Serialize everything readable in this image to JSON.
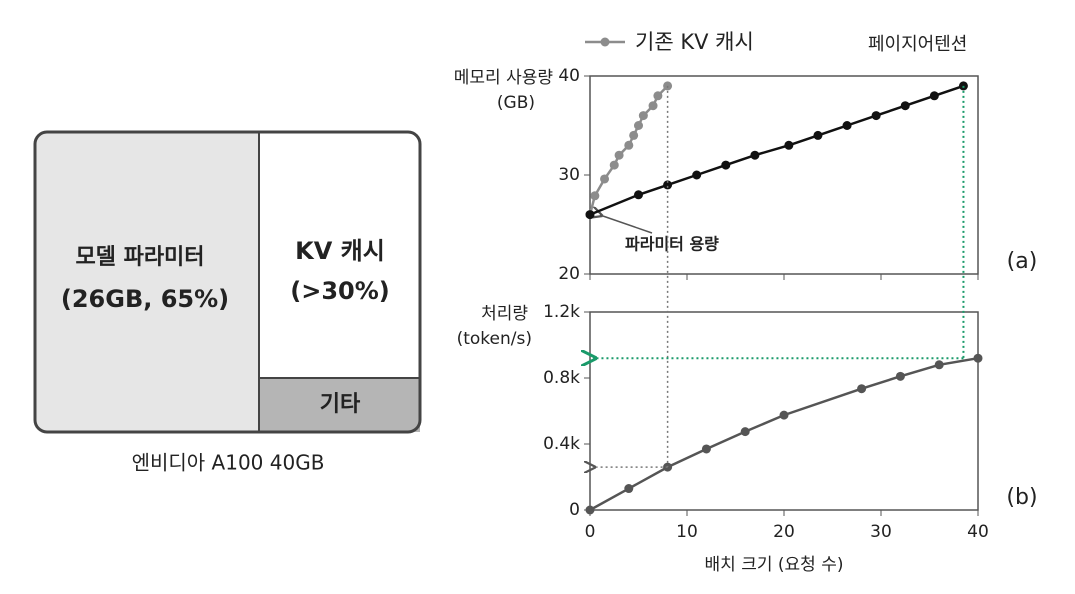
{
  "diagram": {
    "blocks": [
      {
        "label": "모델 파라미터",
        "detail": "(26GB, 65%)"
      },
      {
        "label": "KV 캐시",
        "detail": "(>30%)"
      },
      {
        "label": "기타"
      }
    ],
    "caption": "엔비디아 A100 40GB"
  },
  "chart_data": [
    {
      "type": "line",
      "panel": "(a)",
      "y_label": "메모리 사용량",
      "y_unit": "(GB)",
      "annotation": "파라미터 용량",
      "xlim": [
        0,
        40
      ],
      "xticks": [
        0,
        10,
        20,
        30,
        40
      ],
      "show_xtick_labels": false,
      "ylim": [
        20,
        40
      ],
      "yticks": [
        20,
        30,
        40
      ],
      "series": [
        {
          "name": "기존 KV 캐시",
          "color": "#8c8c8c",
          "x": [
            0,
            0.5,
            1.5,
            2.5,
            3,
            4,
            4.5,
            5,
            5.5,
            6.5,
            7,
            8
          ],
          "values": [
            26,
            27.9,
            29.6,
            31,
            32,
            33,
            34,
            35,
            36,
            37,
            38,
            39
          ]
        },
        {
          "name": "페이지어텐션",
          "color": "#111111",
          "x": [
            0,
            5,
            8,
            11,
            14,
            17,
            20.5,
            23.5,
            26.5,
            29.5,
            32.5,
            35.5,
            38.5
          ],
          "values": [
            26,
            28,
            29,
            30,
            31,
            32,
            33,
            34,
            35,
            36,
            37,
            38,
            39
          ]
        }
      ]
    },
    {
      "type": "line",
      "panel": "(b)",
      "y_label": "처리량",
      "y_unit": "(token/s)",
      "x_label": "배치 크기 (요청 수)",
      "xlim": [
        0,
        40
      ],
      "xticks": [
        0,
        10,
        20,
        30,
        40
      ],
      "show_xtick_labels": true,
      "ylim": [
        0,
        1200
      ],
      "yticks": [
        0,
        {
          "value": 400,
          "label": "0.4k"
        },
        {
          "value": 800,
          "label": "0.8k"
        },
        {
          "value": 1200,
          "label": "1.2k"
        }
      ],
      "series": [
        {
          "color": "#555555",
          "x": [
            0,
            4,
            8,
            12,
            16,
            20,
            28,
            32,
            36,
            40
          ],
          "values": [
            0,
            130,
            260,
            370,
            475,
            575,
            735,
            810,
            880,
            920
          ]
        }
      ]
    }
  ]
}
